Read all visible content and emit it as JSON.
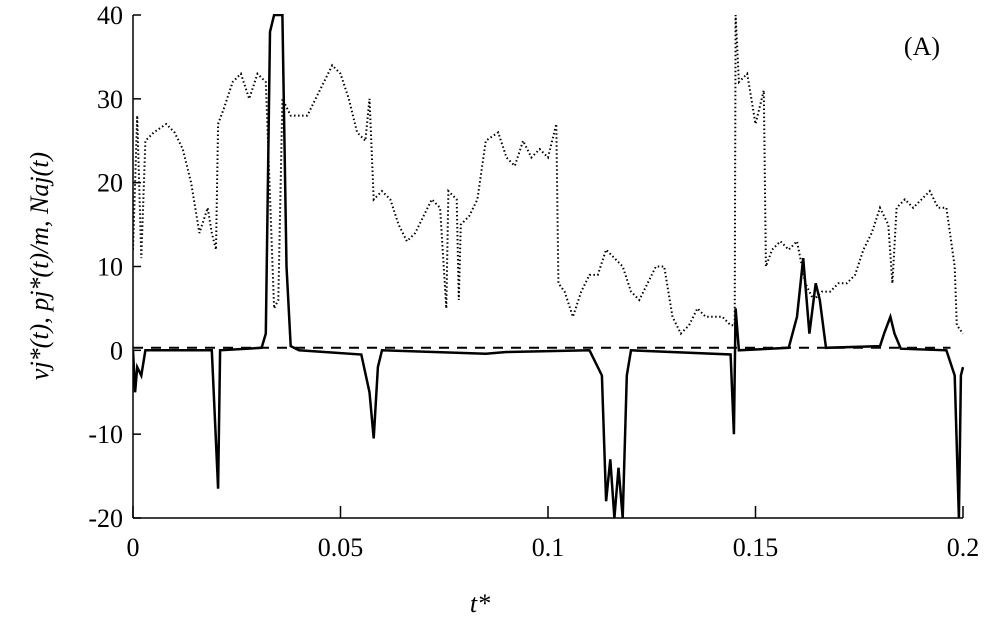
{
  "chart_data": {
    "type": "line",
    "annotation": "(A)",
    "x_label": "t*",
    "y_label": "vj*(t), pj*(t)/m, Naj(t)",
    "xlim": [
      0,
      0.2
    ],
    "xticks": [
      0,
      0.05,
      0.1,
      0.15,
      0.2
    ],
    "ylim": [
      -20,
      40
    ],
    "yticks": [
      -20,
      -10,
      0,
      10,
      20,
      30,
      40
    ],
    "series": [
      {
        "style": "dotted",
        "color": "#000000",
        "x": [
          0,
          0.001,
          0.002,
          0.003,
          0.005,
          0.008,
          0.01,
          0.012,
          0.014,
          0.016,
          0.018,
          0.019,
          0.02,
          0.0205,
          0.022,
          0.024,
          0.026,
          0.028,
          0.03,
          0.032,
          0.034,
          0.035,
          0.036,
          0.038,
          0.04,
          0.042,
          0.044,
          0.046,
          0.048,
          0.05,
          0.052,
          0.054,
          0.056,
          0.057,
          0.058,
          0.06,
          0.062,
          0.064,
          0.066,
          0.068,
          0.07,
          0.072,
          0.074,
          0.0755,
          0.076,
          0.078,
          0.0785,
          0.079,
          0.081,
          0.083,
          0.085,
          0.088,
          0.09,
          0.092,
          0.094,
          0.096,
          0.098,
          0.1,
          0.102,
          0.1025,
          0.104,
          0.106,
          0.108,
          0.11,
          0.112,
          0.114,
          0.116,
          0.118,
          0.12,
          0.122,
          0.124,
          0.126,
          0.128,
          0.13,
          0.132,
          0.134,
          0.136,
          0.138,
          0.14,
          0.142,
          0.144,
          0.145,
          0.1452,
          0.146,
          0.148,
          0.15,
          0.152,
          0.1525,
          0.154,
          0.156,
          0.158,
          0.16,
          0.162,
          0.164,
          0.166,
          0.168,
          0.17,
          0.172,
          0.174,
          0.176,
          0.178,
          0.18,
          0.182,
          0.183,
          0.184,
          0.186,
          0.188,
          0.19,
          0.192,
          0.194,
          0.196,
          0.198,
          0.1985,
          0.2
        ],
        "values": [
          12,
          28,
          11,
          25,
          26,
          27,
          26,
          24,
          20,
          14,
          17,
          14,
          12,
          27,
          29,
          32,
          33,
          30,
          33,
          32,
          5,
          6,
          30,
          28,
          28,
          28,
          30,
          32,
          34,
          33,
          30,
          26,
          25,
          30,
          18,
          19,
          18,
          15,
          13,
          14,
          16,
          18,
          17,
          5,
          19,
          18,
          6,
          15,
          16,
          18,
          25,
          26,
          23,
          22,
          25,
          23,
          24,
          23,
          27,
          8,
          7,
          4,
          7,
          9,
          9,
          12,
          11,
          10,
          7,
          6,
          8,
          10,
          10,
          4,
          2,
          3,
          5,
          4,
          4,
          4,
          3,
          3,
          40,
          32,
          33,
          27,
          31,
          10,
          12,
          13,
          12,
          13,
          8,
          6,
          7,
          7,
          8,
          8,
          9,
          12,
          14,
          17,
          15,
          8,
          17,
          18,
          17,
          18,
          19,
          17,
          17,
          10,
          3,
          2
        ]
      },
      {
        "style": "solid",
        "color": "#000000",
        "x": [
          0,
          0.0005,
          0.001,
          0.002,
          0.003,
          0.019,
          0.0205,
          0.021,
          0.031,
          0.032,
          0.033,
          0.034,
          0.035,
          0.036,
          0.037,
          0.038,
          0.04,
          0.055,
          0.057,
          0.058,
          0.059,
          0.06,
          0.085,
          0.09,
          0.11,
          0.113,
          0.114,
          0.115,
          0.116,
          0.117,
          0.118,
          0.119,
          0.12,
          0.144,
          0.1448,
          0.1452,
          0.146,
          0.158,
          0.16,
          0.1615,
          0.163,
          0.1645,
          0.1655,
          0.167,
          0.18,
          0.181,
          0.1825,
          0.1835,
          0.185,
          0.196,
          0.198,
          0.199,
          0.1995,
          0.2
        ],
        "values": [
          0,
          -5,
          -2,
          -3,
          0,
          0,
          -16.5,
          0,
          0.3,
          2,
          38,
          40,
          40,
          40,
          10,
          0.5,
          0,
          -0.5,
          -5,
          -10.5,
          -2,
          0,
          -0.4,
          -0.2,
          0,
          -3,
          -18,
          -13,
          -20,
          -14,
          -20,
          -3,
          0,
          -0.5,
          -10,
          5,
          0,
          0.3,
          4,
          11,
          2,
          8,
          6,
          0.3,
          0.5,
          2,
          4,
          2,
          0.2,
          0,
          -3,
          -20,
          -3,
          -2
        ]
      },
      {
        "style": "dashed",
        "color": "#000000",
        "x": [
          0,
          0.197
        ],
        "values": [
          0.3,
          0.3
        ]
      }
    ]
  }
}
